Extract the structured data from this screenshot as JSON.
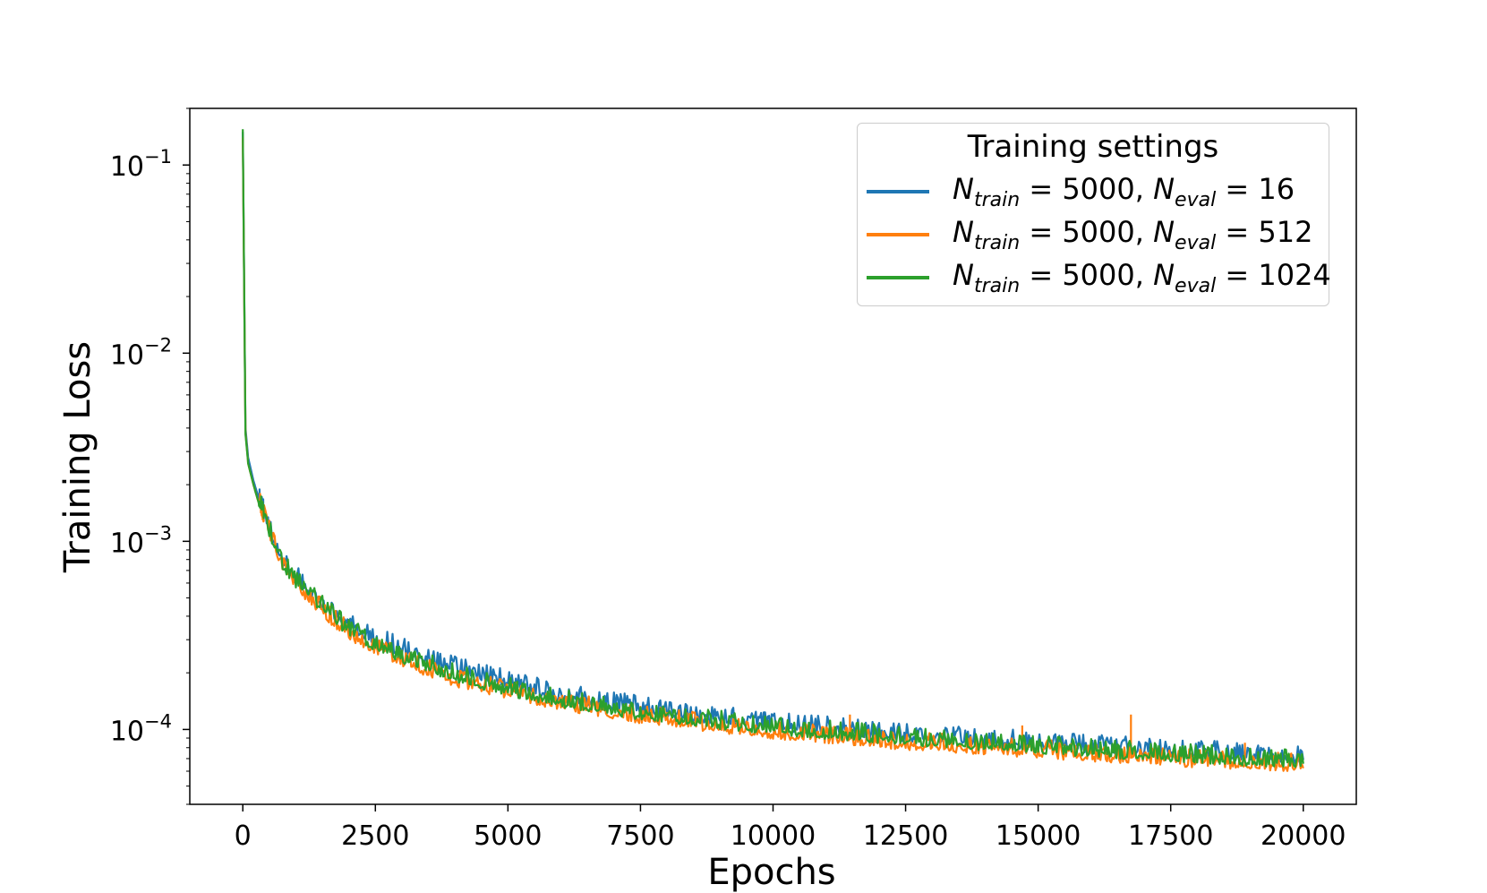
{
  "chart_data": {
    "type": "line",
    "xlabel": "Epochs",
    "ylabel": "Training Loss",
    "yscale": "log",
    "xlim": [
      -1000,
      21000
    ],
    "ylim": [
      4e-05,
      0.2
    ],
    "x_ticks": [
      0,
      2500,
      5000,
      7500,
      10000,
      12500,
      15000,
      17500,
      20000
    ],
    "x_tick_labels": [
      "0",
      "2500",
      "5000",
      "7500",
      "10000",
      "12500",
      "15000",
      "17500",
      "20000"
    ],
    "y_ticks": [
      0.1,
      0.01,
      0.001,
      0.0001
    ],
    "y_tick_labels": [
      {
        "base": "10",
        "exp": "−1"
      },
      {
        "base": "10",
        "exp": "−2"
      },
      {
        "base": "10",
        "exp": "−3"
      },
      {
        "base": "10",
        "exp": "−4"
      }
    ],
    "grid": false,
    "legend": {
      "title": "Training settings",
      "placement": "top-right"
    },
    "series": [
      {
        "name": "N_train = 5000, N_eval = 16",
        "label_parts": {
          "n": "N",
          "sub1": "train",
          "eq1": " = 5000, ",
          "sub2": "eval",
          "eq2": " = 16"
        },
        "color": "#1f77b4",
        "x": [
          0,
          50,
          100,
          200,
          300,
          500,
          750,
          1000,
          1500,
          2000,
          2500,
          3000,
          4000,
          5000,
          6000,
          7500,
          9000,
          10000,
          12500,
          15000,
          17500,
          20000
        ],
        "y": [
          0.15,
          0.004,
          0.0028,
          0.0021,
          0.0017,
          0.00115,
          0.0008,
          0.00063,
          0.00046,
          0.00035,
          0.0003,
          0.00026,
          0.00021,
          0.000175,
          0.00015,
          0.000128,
          0.000113,
          0.000105,
          9.2e-05,
          8.3e-05,
          7.6e-05,
          7e-05
        ]
      },
      {
        "name": "N_train = 5000, N_eval = 512",
        "label_parts": {
          "n": "N",
          "sub1": "train",
          "eq1": " = 5000, ",
          "sub2": "eval",
          "eq2": " = 512"
        },
        "color": "#ff7f0e",
        "x": [
          0,
          50,
          100,
          200,
          300,
          500,
          750,
          1000,
          1500,
          2000,
          2500,
          3000,
          4000,
          5000,
          6000,
          7500,
          9000,
          10000,
          12500,
          15000,
          17500,
          20000
        ],
        "y": [
          0.14,
          0.0038,
          0.0026,
          0.002,
          0.0016,
          0.0011,
          0.00075,
          0.00058,
          0.00042,
          0.00032,
          0.00027,
          0.00023,
          0.00018,
          0.000155,
          0.000135,
          0.000115,
          0.000102,
          9.5e-05,
          8.3e-05,
          7.5e-05,
          6.8e-05,
          6.3e-05
        ],
        "spikes": [
          [
            11450,
            0.00012
          ],
          [
            14700,
            0.000105
          ],
          [
            16750,
            0.00012
          ],
          [
            18900,
            8.5e-05
          ]
        ]
      },
      {
        "name": "N_train = 5000, N_eval = 1024",
        "label_parts": {
          "n": "N",
          "sub1": "train",
          "eq1": " = 5000, ",
          "sub2": "eval",
          "eq2": " = 1024"
        },
        "color": "#2ca02c",
        "x": [
          0,
          50,
          100,
          200,
          300,
          500,
          750,
          1000,
          1500,
          2000,
          2500,
          3000,
          4000,
          5000,
          6000,
          7500,
          9000,
          10000,
          12500,
          15000,
          17500,
          20000
        ],
        "y": [
          0.155,
          0.0037,
          0.0026,
          0.002,
          0.0016,
          0.0011,
          0.00076,
          0.0006,
          0.00044,
          0.00033,
          0.00028,
          0.00024,
          0.00019,
          0.00016,
          0.00014,
          0.00012,
          0.000107,
          0.0001,
          8.8e-05,
          7.9e-05,
          7.2e-05,
          6.6e-05
        ]
      }
    ]
  }
}
